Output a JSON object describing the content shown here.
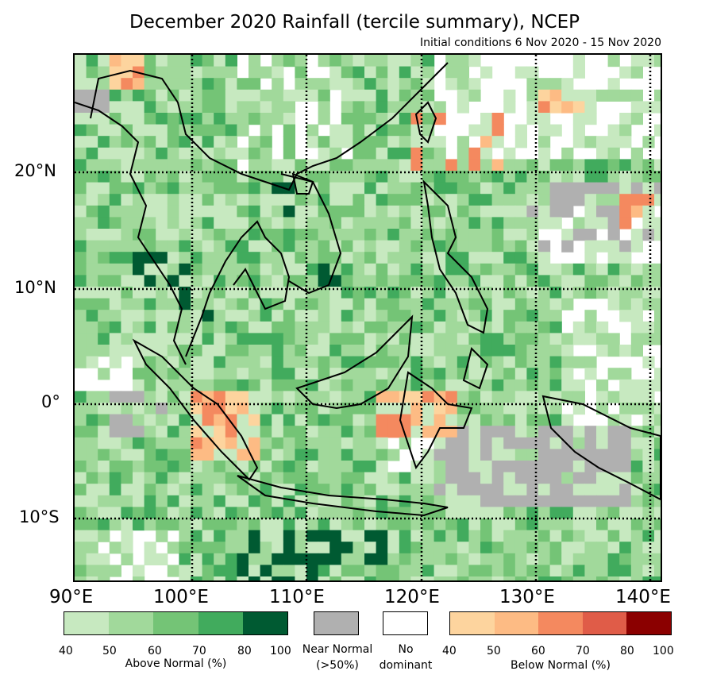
{
  "title": "December 2020 Rainfall (tercile summary), NCEP",
  "subtitle": "Initial conditions 6 Nov 2020 - 15 Nov 2020",
  "lat_labels": [
    "20°N",
    "10°N",
    "0°",
    "10°S"
  ],
  "lon_labels": [
    "90°E",
    "100°E",
    "110°E",
    "120°E",
    "130°E",
    "140°E"
  ],
  "legend": {
    "above": {
      "caption": "Above Normal (%)",
      "ticks": [
        "40",
        "50",
        "60",
        "70",
        "80",
        "100"
      ],
      "colors": [
        "#c7e9c0",
        "#a1d99b",
        "#74c476",
        "#41ab5d",
        "#005a32"
      ]
    },
    "near": {
      "caption_line1": "Near Normal",
      "caption_line2": "(>50%)",
      "color": "#b0b0b0"
    },
    "none": {
      "caption_line1": "No",
      "caption_line2": "dominant",
      "color": "#ffffff"
    },
    "below": {
      "caption": "Below Normal (%)",
      "ticks": [
        "40",
        "50",
        "60",
        "70",
        "80",
        "100"
      ],
      "colors": [
        "#fdd49e",
        "#fdbb84",
        "#f4895f",
        "#e05c48",
        "#8b0000"
      ]
    }
  },
  "map_colors": {
    "grid_line": "#000000",
    "coast": "#000000"
  }
}
